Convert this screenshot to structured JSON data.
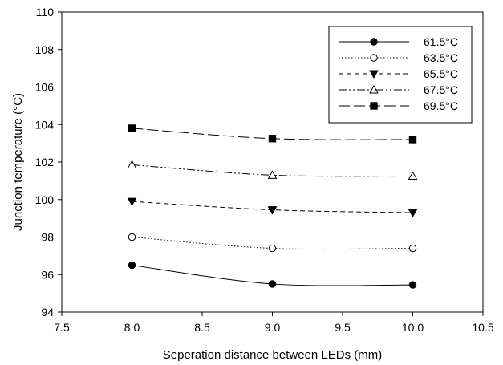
{
  "chart_data": {
    "type": "line",
    "xlabel": "Seperation distance between LEDs (mm)",
    "ylabel": "Junction temperature (°C)",
    "xlim": [
      7.5,
      10.5
    ],
    "ylim": [
      94,
      110
    ],
    "xticks": [
      "7.5",
      "8.0",
      "8.5",
      "9.0",
      "9.5",
      "10.0",
      "10.5"
    ],
    "yticks": [
      "94",
      "96",
      "98",
      "100",
      "102",
      "104",
      "106",
      "108",
      "110"
    ],
    "grid": false,
    "legend_position": "top-right",
    "x": [
      8.0,
      9.0,
      10.0
    ],
    "series": [
      {
        "name": "61.5°C",
        "values": [
          96.5,
          95.5,
          95.45
        ],
        "marker": "filled-circle",
        "dash": "solid"
      },
      {
        "name": "63.5°C",
        "values": [
          98.0,
          97.4,
          97.4
        ],
        "marker": "open-circle",
        "dash": "dotted"
      },
      {
        "name": "65.5°C",
        "values": [
          99.9,
          99.45,
          99.3
        ],
        "marker": "filled-triangle-down",
        "dash": "dashed"
      },
      {
        "name": "67.5°C",
        "values": [
          101.85,
          101.3,
          101.25
        ],
        "marker": "open-triangle-up",
        "dash": "dash-dot-dot"
      },
      {
        "name": "69.5°C",
        "values": [
          103.8,
          103.25,
          103.2
        ],
        "marker": "filled-square",
        "dash": "long-dash"
      }
    ]
  }
}
